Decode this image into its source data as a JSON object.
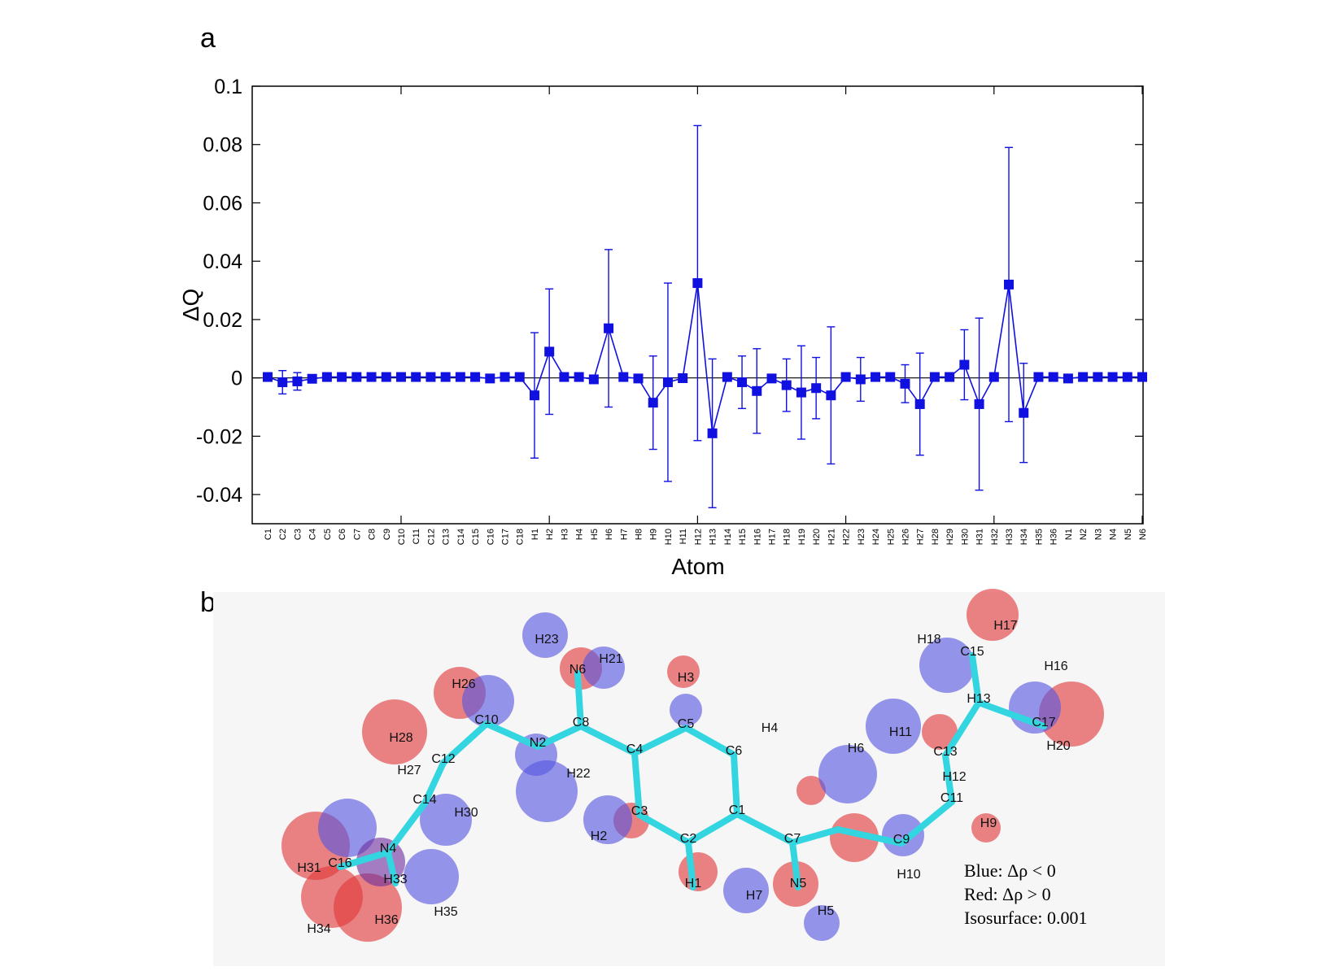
{
  "panels": {
    "a": "a",
    "b": "b"
  },
  "chart_data": {
    "type": "line",
    "title": "",
    "xlabel": "Atom",
    "ylabel": "ΔQ",
    "ylim": [
      -0.05,
      0.1
    ],
    "yticks": [
      0.1,
      0.08,
      0.06,
      0.04,
      0.02,
      0,
      -0.02,
      -0.04
    ],
    "ytick_labels": [
      "0.1",
      "0.08",
      "0.06",
      "0.04",
      "0.02",
      "0",
      "-0.02",
      "-0.04"
    ],
    "color": "#1010e0",
    "categories": [
      "C1",
      "C2",
      "C3",
      "C4",
      "C5",
      "C6",
      "C7",
      "C8",
      "C9",
      "C10",
      "C11",
      "C12",
      "C13",
      "C14",
      "C15",
      "C16",
      "C17",
      "C18",
      "H1",
      "H2",
      "H3",
      "H4",
      "H5",
      "H6",
      "H7",
      "H8",
      "H9",
      "H10",
      "H11",
      "H12",
      "H13",
      "H14",
      "H15",
      "H16",
      "H17",
      "H18",
      "H19",
      "H20",
      "H21",
      "H22",
      "H23",
      "H24",
      "H25",
      "H26",
      "H27",
      "H28",
      "H29",
      "H30",
      "H31",
      "H32",
      "H33",
      "H34",
      "H35",
      "H36",
      "N1",
      "N2",
      "N3",
      "N4",
      "N5",
      "N6"
    ],
    "values": [
      0.0003,
      -0.0015,
      -0.0012,
      -0.0003,
      0.0003,
      0.0003,
      0.0003,
      0.0003,
      0.0003,
      0.0003,
      0.0003,
      0.0003,
      0.0003,
      0.0003,
      0.0003,
      -0.0002,
      0.0003,
      0.0003,
      -0.006,
      0.009,
      0.0003,
      0.0003,
      -0.0005,
      0.017,
      0.0003,
      -0.0002,
      -0.0085,
      -0.0015,
      -0.0001,
      0.0325,
      -0.019,
      0.0003,
      -0.0015,
      -0.0045,
      -0.0002,
      -0.0025,
      -0.005,
      -0.0035,
      -0.006,
      0.0003,
      -0.0005,
      0.0003,
      0.0003,
      -0.002,
      -0.009,
      0.0003,
      0.0003,
      0.0045,
      -0.009,
      0.0003,
      0.032,
      -0.012,
      0.0003,
      0.0003,
      -0.0002,
      0.0003,
      0.0003,
      0.0003,
      0.0003,
      0.0003
    ],
    "errors": [
      0,
      0.004,
      0.003,
      0,
      0,
      0,
      0,
      0,
      0,
      0,
      0,
      0,
      0,
      0,
      0,
      0,
      0,
      0,
      0.0215,
      0.0215,
      0,
      0,
      0,
      0.027,
      0,
      0,
      0.016,
      0.034,
      0,
      0.054,
      0.0255,
      0,
      0.009,
      0.0145,
      0,
      0.009,
      0.016,
      0.0105,
      0.0235,
      0,
      0.0075,
      0,
      0,
      0.0065,
      0.0175,
      0,
      0,
      0.012,
      0.0295,
      0,
      0.047,
      0.017,
      0,
      0,
      0,
      0,
      0,
      0,
      0,
      0
    ]
  },
  "molecule": {
    "atom_labels": [
      "H23",
      "H21",
      "N6",
      "H3",
      "H26",
      "C10",
      "C8",
      "C5",
      "H4",
      "H28",
      "N2",
      "C4",
      "C6",
      "H27",
      "C12",
      "C14",
      "H22",
      "H30",
      "C3",
      "C1",
      "H2",
      "C2",
      "C7",
      "N4",
      "C16",
      "H31",
      "H33",
      "H36",
      "H35",
      "H34",
      "H1",
      "N5",
      "H7",
      "H5",
      "H6",
      "C9",
      "H10",
      "H11",
      "C13",
      "H12",
      "C11",
      "H9",
      "H18",
      "H17",
      "C15",
      "H16",
      "H13",
      "C17",
      "H20"
    ],
    "legend": [
      "Blue: Δρ < 0",
      "Red:  Δρ > 0",
      "Isosurface: 0.001"
    ]
  }
}
